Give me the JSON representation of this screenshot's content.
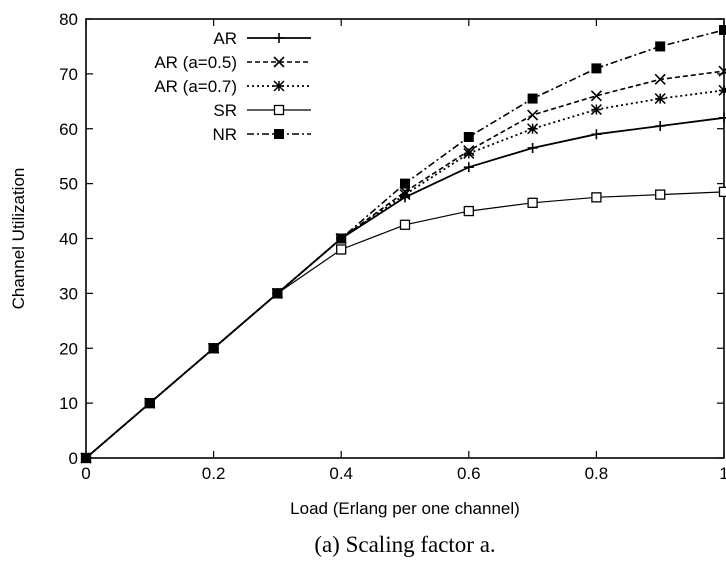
{
  "chart_data": {
    "type": "line",
    "xlabel": "Load (Erlang per one channel)",
    "ylabel": "Channel Utilization",
    "caption": "(a) Scaling factor a.",
    "xlim": [
      0,
      1
    ],
    "ylim": [
      0,
      80
    ],
    "x_ticks": [
      "0",
      "0.2",
      "0.4",
      "0.6",
      "0.8",
      "1"
    ],
    "y_ticks": [
      "0",
      "10",
      "20",
      "30",
      "40",
      "50",
      "60",
      "70",
      "80"
    ],
    "grid": false,
    "legend_position": "top-left",
    "x": [
      0,
      0.1,
      0.2,
      0.3,
      0.4,
      0.5,
      0.6,
      0.7,
      0.8,
      0.9,
      1.0
    ],
    "series": [
      {
        "name": "AR",
        "marker": "plus",
        "dash": "solid",
        "values": [
          0,
          10,
          20,
          30,
          40,
          47.5,
          53,
          56.5,
          59,
          60.5,
          62
        ]
      },
      {
        "name": "AR (a=0.5)",
        "marker": "cross",
        "dash": "dashed",
        "values": [
          0,
          10,
          20,
          30,
          40,
          48.5,
          56,
          62.5,
          66,
          69,
          70.5
        ]
      },
      {
        "name": "AR (a=0.7)",
        "marker": "asterisk",
        "dash": "dotted",
        "values": [
          0,
          10,
          20,
          30,
          40,
          48,
          55.5,
          60,
          63.5,
          65.5,
          67
        ]
      },
      {
        "name": "SR",
        "marker": "square-open",
        "dash": "solid-thin",
        "values": [
          0,
          10,
          20,
          30,
          38,
          42.5,
          45,
          46.5,
          47.5,
          48,
          48.5
        ]
      },
      {
        "name": "NR",
        "marker": "square-filled",
        "dash": "dashdot",
        "values": [
          0,
          10,
          20,
          30,
          40,
          50,
          58.5,
          65.5,
          71,
          75,
          78
        ]
      }
    ]
  }
}
